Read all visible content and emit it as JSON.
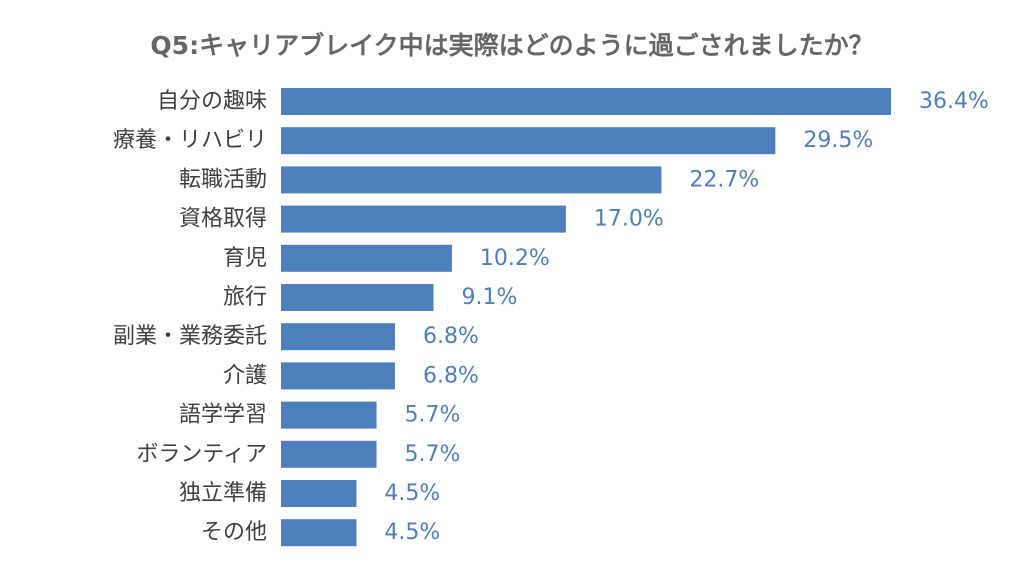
{
  "chart_data": {
    "type": "bar",
    "orientation": "horizontal",
    "title": "Q5:キャリアブレイク中は実際はどのように過ごされましたか？",
    "categories": [
      "自分の趣味",
      "療養・リハビリ",
      "転職活動",
      "資格取得",
      "育児",
      "旅行",
      "副業・業務委託",
      "介護",
      "語学学習",
      "ボランティア",
      "独立準備",
      "その他"
    ],
    "values": [
      36.4,
      29.5,
      22.7,
      17.0,
      10.2,
      9.1,
      6.8,
      6.8,
      5.7,
      5.7,
      4.5,
      4.5
    ],
    "value_labels": [
      "36.4%",
      "29.5%",
      "22.7%",
      "17.0%",
      "10.2%",
      "9.1%",
      "6.8%",
      "6.8%",
      "5.7%",
      "5.7%",
      "4.5%",
      "4.5%"
    ],
    "xlim": [
      0,
      36.4
    ],
    "grid": false,
    "legend": "none",
    "colors": {
      "bar": "#4e7fbd",
      "value_label": "#4e7fbd",
      "category_label": "#404040",
      "title": "#666666"
    }
  }
}
